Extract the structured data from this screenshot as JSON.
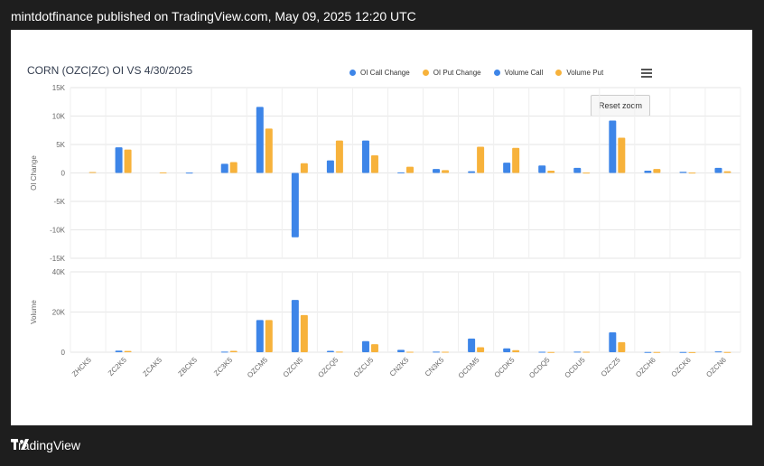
{
  "header": {
    "text": "mintdotfinance published on TradingView.com, May 09, 2025 12:20 UTC"
  },
  "footer": {
    "brand": "TradingView"
  },
  "reset_zoom": "Reset zoom",
  "colors": {
    "call": "#3d85e8",
    "put": "#f7b23b"
  },
  "chart_data": {
    "type": "bar",
    "title": "CORN (OZC|ZC) OI VS 4/30/2025",
    "categories": [
      "ZHCK5",
      "ZC2K5",
      "ZCAK5",
      "ZBCK5",
      "ZC3K5",
      "OZCM5",
      "OZCN5",
      "OZCQ5",
      "OZCU5",
      "CN2K5",
      "CN3K5",
      "OCDM5",
      "OCDK5",
      "OCDQ5",
      "OCDU5",
      "OZCZ5",
      "OZCH6",
      "OZCK6",
      "OZCN6"
    ],
    "legend": [
      "OI Call Change",
      "OI Put Change",
      "Volume Call",
      "Volume Put"
    ],
    "legend_position": "top-right",
    "grid": true,
    "panels": [
      {
        "ylabel": "OI Change",
        "ylim": [
          -15000,
          15000
        ],
        "yticks": [
          "15K",
          "10K",
          "5K",
          "0",
          "-5K",
          "-10K",
          "-15K"
        ],
        "series": [
          {
            "name": "OI Call Change",
            "values": [
              0,
              4500,
              0,
              50,
              1600,
              11600,
              -11300,
              2200,
              5700,
              100,
              700,
              300,
              1800,
              1300,
              900,
              9200,
              400,
              200,
              900
            ]
          },
          {
            "name": "OI Put Change",
            "values": [
              150,
              4100,
              100,
              0,
              1900,
              7800,
              1700,
              5700,
              3100,
              1100,
              500,
              4600,
              4400,
              400,
              50,
              6200,
              700,
              50,
              300
            ]
          }
        ]
      },
      {
        "ylabel": "Volume",
        "ylim": [
          0,
          40000
        ],
        "yticks": [
          "40K",
          "20K",
          "0"
        ],
        "series": [
          {
            "name": "Volume Call",
            "values": [
              0,
              800,
              0,
              0,
              300,
              16000,
              26000,
              700,
              5500,
              1200,
              300,
              6800,
              1900,
              200,
              300,
              9900,
              100,
              100,
              400
            ]
          },
          {
            "name": "Volume Put",
            "values": [
              0,
              600,
              0,
              0,
              700,
              16000,
              18500,
              300,
              4000,
              200,
              200,
              2500,
              1000,
              100,
              200,
              5000,
              100,
              50,
              100
            ]
          }
        ]
      }
    ]
  }
}
